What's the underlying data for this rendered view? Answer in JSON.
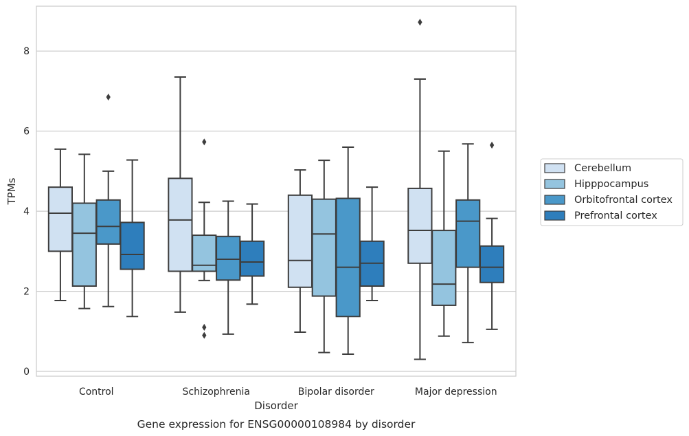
{
  "chart_data": {
    "type": "box",
    "caption": "Gene expression for ENSG00000108984 by disorder",
    "xlabel": "Disorder",
    "ylabel": "TPMs",
    "ylim": [
      -0.12,
      9.12
    ],
    "yticks": [
      0,
      2,
      4,
      6,
      8
    ],
    "grid": "horizontal",
    "legend_position": "right",
    "categories": [
      "Control",
      "Schizophrenia",
      "Bipolar disorder",
      "Major depression"
    ],
    "series": [
      {
        "name": "Cerebellum",
        "color": "#d0e1f2",
        "boxes": [
          {
            "whislo": 1.77,
            "q1": 3.0,
            "med": 3.95,
            "q3": 4.6,
            "whishi": 5.55,
            "fliers": []
          },
          {
            "whislo": 1.48,
            "q1": 2.5,
            "med": 3.78,
            "q3": 4.82,
            "whishi": 7.35,
            "fliers": []
          },
          {
            "whislo": 0.98,
            "q1": 2.1,
            "med": 2.77,
            "q3": 4.4,
            "whishi": 5.03,
            "fliers": []
          },
          {
            "whislo": 0.3,
            "q1": 2.7,
            "med": 3.52,
            "q3": 4.57,
            "whishi": 7.3,
            "fliers": [
              8.72
            ]
          }
        ]
      },
      {
        "name": "Hipppocampus",
        "color": "#94c4df",
        "boxes": [
          {
            "whislo": 1.57,
            "q1": 2.13,
            "med": 3.45,
            "q3": 4.2,
            "whishi": 5.42,
            "fliers": []
          },
          {
            "whislo": 2.27,
            "q1": 2.5,
            "med": 2.65,
            "q3": 3.4,
            "whishi": 4.22,
            "fliers": [
              5.73,
              1.1,
              0.9
            ]
          },
          {
            "whislo": 0.47,
            "q1": 1.88,
            "med": 3.43,
            "q3": 4.3,
            "whishi": 5.27,
            "fliers": []
          },
          {
            "whislo": 0.88,
            "q1": 1.65,
            "med": 2.18,
            "q3": 3.52,
            "whishi": 5.5,
            "fliers": []
          }
        ]
      },
      {
        "name": "Orbitofrontal cortex",
        "color": "#4a98c9",
        "boxes": [
          {
            "whislo": 1.62,
            "q1": 3.18,
            "med": 3.62,
            "q3": 4.28,
            "whishi": 5.0,
            "fliers": [
              6.85
            ]
          },
          {
            "whislo": 0.93,
            "q1": 2.28,
            "med": 2.8,
            "q3": 3.37,
            "whishi": 4.25,
            "fliers": []
          },
          {
            "whislo": 0.43,
            "q1": 1.37,
            "med": 2.6,
            "q3": 4.32,
            "whishi": 5.6,
            "fliers": []
          },
          {
            "whislo": 0.72,
            "q1": 2.6,
            "med": 3.75,
            "q3": 4.28,
            "whishi": 5.68,
            "fliers": []
          }
        ]
      },
      {
        "name": "Prefrontal cortex",
        "color": "#2e7ebc",
        "boxes": [
          {
            "whislo": 1.37,
            "q1": 2.55,
            "med": 2.92,
            "q3": 3.72,
            "whishi": 5.28,
            "fliers": []
          },
          {
            "whislo": 1.68,
            "q1": 2.38,
            "med": 2.73,
            "q3": 3.25,
            "whishi": 4.18,
            "fliers": []
          },
          {
            "whislo": 1.77,
            "q1": 2.13,
            "med": 2.7,
            "q3": 3.25,
            "whishi": 4.6,
            "fliers": []
          },
          {
            "whislo": 1.05,
            "q1": 2.22,
            "med": 2.6,
            "q3": 3.13,
            "whishi": 3.82,
            "fliers": [
              5.65
            ]
          }
        ]
      }
    ]
  }
}
